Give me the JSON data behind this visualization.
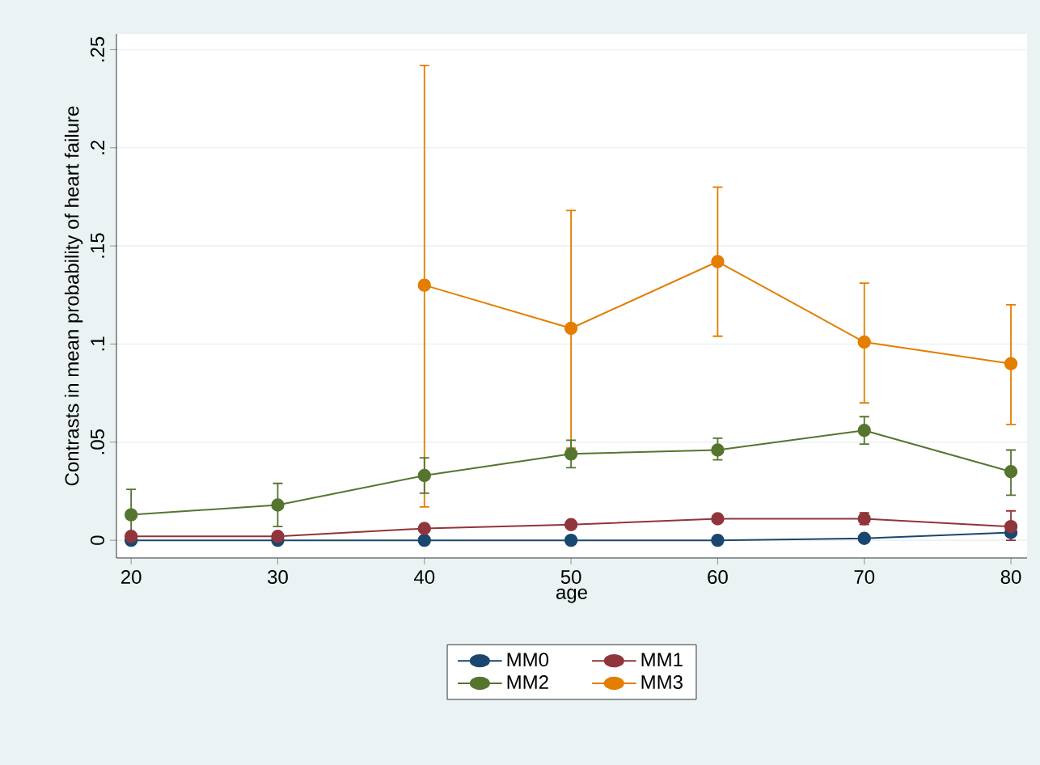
{
  "chart_data": {
    "type": "line",
    "xlabel": "age",
    "ylabel": "Contrasts in mean probability of heart failure",
    "x": [
      20,
      30,
      40,
      50,
      60,
      70,
      80
    ],
    "series": [
      {
        "name": "MM0",
        "color": "#1a476f",
        "values": [
          0,
          0,
          0,
          0,
          0,
          0.001,
          0.004
        ],
        "errors": [
          null,
          null,
          null,
          null,
          null,
          null,
          null
        ]
      },
      {
        "name": "MM1",
        "color": "#90353b",
        "values": [
          0.002,
          0.002,
          0.006,
          0.008,
          0.011,
          0.011,
          0.007
        ],
        "errors": [
          null,
          null,
          null,
          null,
          null,
          [
            0.008,
            0.014
          ],
          [
            0,
            0.015
          ]
        ]
      },
      {
        "name": "MM2",
        "color": "#55752f",
        "values": [
          0.013,
          0.018,
          0.033,
          0.044,
          0.046,
          0.056,
          0.035
        ],
        "errors": [
          [
            0,
            0.026
          ],
          [
            0.007,
            0.029
          ],
          [
            0.024,
            0.042
          ],
          [
            0.037,
            0.051
          ],
          [
            0.041,
            0.052
          ],
          [
            0.049,
            0.063
          ],
          [
            0.023,
            0.046
          ]
        ]
      },
      {
        "name": "MM3",
        "color": "#e37e00",
        "values": [
          null,
          null,
          0.13,
          0.108,
          0.142,
          0.101,
          0.09
        ],
        "errors": [
          null,
          null,
          [
            0.017,
            0.242
          ],
          [
            0.047,
            0.168
          ],
          [
            0.104,
            0.18
          ],
          [
            0.07,
            0.131
          ],
          [
            0.059,
            0.12
          ]
        ]
      }
    ],
    "xlim": [
      19,
      81.1
    ],
    "ylim": [
      -0.009,
      0.258
    ],
    "xticks": [
      20,
      30,
      40,
      50,
      60,
      70,
      80
    ],
    "yticks": [
      0,
      {
        "value": 0.05,
        "label": ".05"
      },
      {
        "value": 0.1,
        "label": ".1"
      },
      {
        "value": 0.15,
        "label": ".15"
      },
      {
        "value": 0.2,
        "label": ".2"
      },
      {
        "value": 0.25,
        "label": ".25"
      }
    ],
    "grid": "y",
    "legend": "bottom",
    "marker": "circle",
    "line_style": "solid"
  }
}
